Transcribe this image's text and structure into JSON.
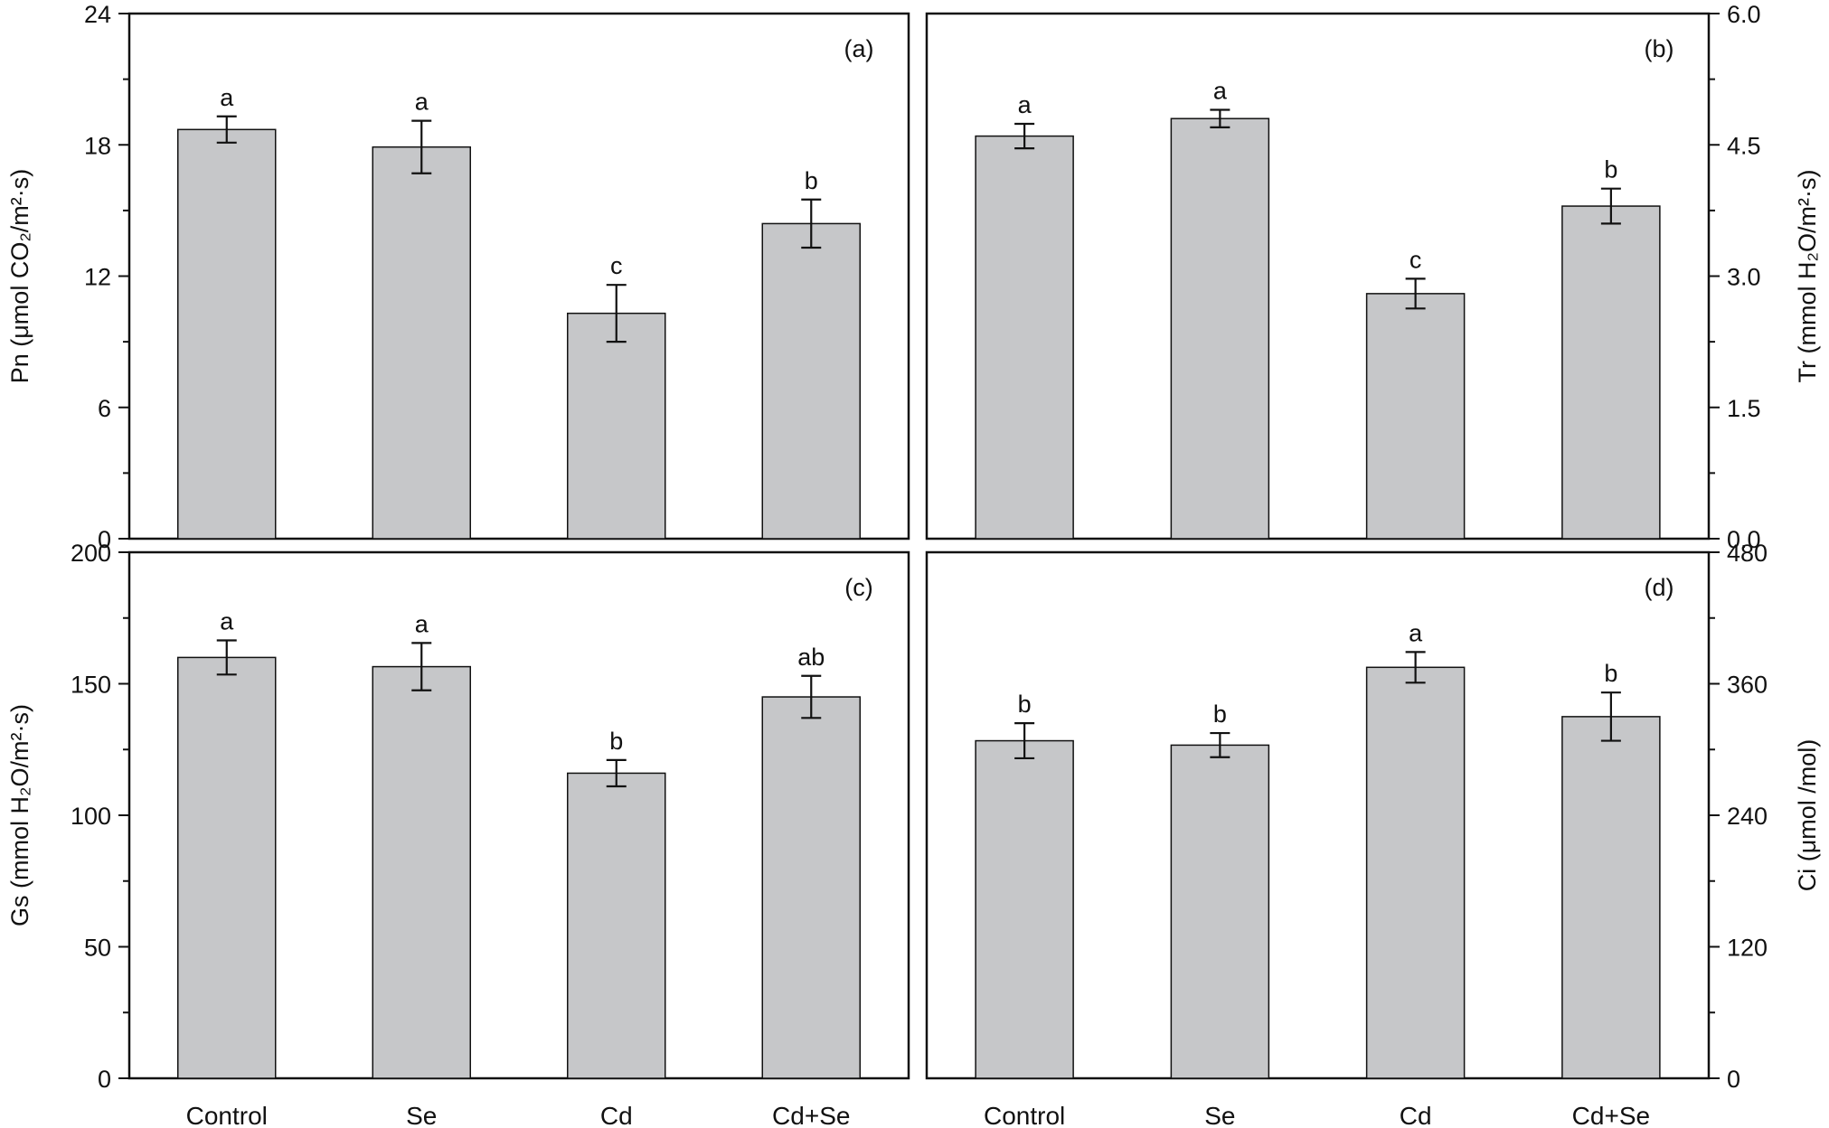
{
  "chart_data": [
    {
      "panel_label": "(a)",
      "type": "bar",
      "categories": [
        "Control",
        "Se",
        "Cd",
        "Cd+Se"
      ],
      "values": [
        18.7,
        17.9,
        10.3,
        14.4
      ],
      "errors": [
        0.6,
        1.2,
        1.3,
        1.1
      ],
      "sig_letters": [
        "a",
        "a",
        "c",
        "b"
      ],
      "ylabel": "Pn (μmol CO₂/m²·s)",
      "ylim": [
        0,
        24
      ],
      "yticks": [
        0,
        6,
        12,
        18,
        24
      ],
      "ytick_labels": [
        "0",
        "6",
        "12",
        "18",
        "24"
      ],
      "axis_side": "left",
      "show_xtick_labels": false,
      "bar_color": "#c6c7c9"
    },
    {
      "panel_label": "(b)",
      "type": "bar",
      "categories": [
        "Control",
        "Se",
        "Cd",
        "Cd+Se"
      ],
      "values": [
        4.6,
        4.8,
        2.8,
        3.8
      ],
      "errors": [
        0.14,
        0.1,
        0.17,
        0.2
      ],
      "sig_letters": [
        "a",
        "a",
        "c",
        "b"
      ],
      "ylabel": "Tr (mmol H₂O/m²·s)",
      "ylim": [
        0,
        6
      ],
      "yticks": [
        0,
        1.5,
        3,
        4.5,
        6
      ],
      "ytick_labels": [
        "0.0",
        "1.5",
        "3.0",
        "4.5",
        "6.0"
      ],
      "axis_side": "right",
      "show_xtick_labels": false,
      "bar_color": "#c6c7c9"
    },
    {
      "panel_label": "(c)",
      "type": "bar",
      "categories": [
        "Control",
        "Se",
        "Cd",
        "Cd+Se"
      ],
      "values": [
        160,
        156.5,
        116,
        145
      ],
      "errors": [
        6.5,
        9,
        5,
        8
      ],
      "sig_letters": [
        "a",
        "a",
        "b",
        "ab"
      ],
      "ylabel": "Gs (mmol H₂O/m²·s)",
      "ylim": [
        0,
        200
      ],
      "yticks": [
        0,
        50,
        100,
        150,
        200
      ],
      "ytick_labels": [
        "0",
        "50",
        "100",
        "150",
        "200"
      ],
      "axis_side": "left",
      "show_xtick_labels": true,
      "bar_color": "#c6c7c9"
    },
    {
      "panel_label": "(d)",
      "type": "bar",
      "categories": [
        "Control",
        "Se",
        "Cd",
        "Cd+Se"
      ],
      "values": [
        308,
        304,
        375,
        330
      ],
      "errors": [
        16,
        11,
        14,
        22
      ],
      "sig_letters": [
        "b",
        "b",
        "a",
        "b"
      ],
      "ylabel": "Ci (μmol /mol)",
      "ylim": [
        0,
        480
      ],
      "yticks": [
        0,
        120,
        240,
        360,
        480
      ],
      "ytick_labels": [
        "0",
        "120",
        "240",
        "360",
        "480"
      ],
      "axis_side": "right",
      "show_xtick_labels": true,
      "bar_color": "#c6c7c9"
    }
  ]
}
